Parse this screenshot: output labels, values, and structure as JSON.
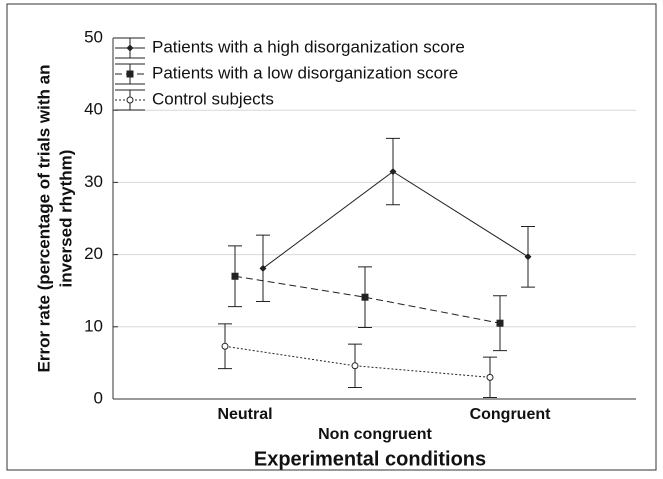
{
  "chart_data": {
    "type": "line",
    "ylabel_lines": [
      "Error rate (percentage of trials with an",
      "inversed rhythm)"
    ],
    "xlabel": "Experimental conditions",
    "categories": [
      "Neutral",
      "Non congruent",
      "Congruent"
    ],
    "series": [
      {
        "name": "Patients with a high disorganization score",
        "color": "#222222",
        "marker": "diamond",
        "dash": "solid",
        "values": [
          18.1,
          31.5,
          19.7
        ],
        "errors": [
          4.6,
          4.6,
          4.2
        ]
      },
      {
        "name": "Patients with a low disorganization score",
        "color": "#222222",
        "marker": "square",
        "dash": "dashed",
        "values": [
          17.0,
          14.1,
          10.5
        ],
        "errors": [
          4.2,
          4.2,
          3.8
        ]
      },
      {
        "name": "Control subjects",
        "color": "#222222",
        "marker": "circle",
        "dash": "dotted",
        "values": [
          7.3,
          4.6,
          3.0
        ],
        "errors": [
          3.1,
          3.0,
          2.8
        ]
      }
    ],
    "ylim": [
      0,
      50
    ],
    "yticks": [
      0,
      10,
      20,
      30,
      40,
      50
    ],
    "grid": true,
    "legend": "top-left"
  }
}
